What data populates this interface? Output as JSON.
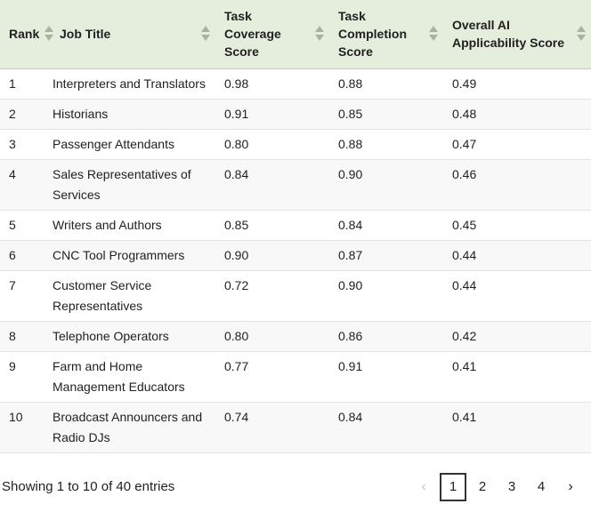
{
  "table": {
    "columns": [
      {
        "label": "Rank"
      },
      {
        "label": "Job Title"
      },
      {
        "label": "Task Coverage Score"
      },
      {
        "label": "Task Completion Score"
      },
      {
        "label": "Overall AI Applicability Score"
      }
    ],
    "rows": [
      {
        "rank": "1",
        "job_title": "Interpreters and Translators",
        "task_coverage": "0.98",
        "task_completion": "0.88",
        "overall": "0.49"
      },
      {
        "rank": "2",
        "job_title": "Historians",
        "task_coverage": "0.91",
        "task_completion": "0.85",
        "overall": "0.48"
      },
      {
        "rank": "3",
        "job_title": "Passenger Attendants",
        "task_coverage": "0.80",
        "task_completion": "0.88",
        "overall": "0.47"
      },
      {
        "rank": "4",
        "job_title": "Sales Representatives of Services",
        "task_coverage": "0.84",
        "task_completion": "0.90",
        "overall": "0.46"
      },
      {
        "rank": "5",
        "job_title": "Writers and Authors",
        "task_coverage": "0.85",
        "task_completion": "0.84",
        "overall": "0.45"
      },
      {
        "rank": "6",
        "job_title": "CNC Tool Programmers",
        "task_coverage": "0.90",
        "task_completion": "0.87",
        "overall": "0.44"
      },
      {
        "rank": "7",
        "job_title": "Customer Service Representatives",
        "task_coverage": "0.72",
        "task_completion": "0.90",
        "overall": "0.44"
      },
      {
        "rank": "8",
        "job_title": "Telephone Operators",
        "task_coverage": "0.80",
        "task_completion": "0.86",
        "overall": "0.42"
      },
      {
        "rank": "9",
        "job_title": "Farm and Home Management Educators",
        "task_coverage": "0.77",
        "task_completion": "0.91",
        "overall": "0.41"
      },
      {
        "rank": "10",
        "job_title": "Broadcast Announcers and Radio DJs",
        "task_coverage": "0.74",
        "task_completion": "0.84",
        "overall": "0.41"
      }
    ]
  },
  "footer": {
    "summary": "Showing 1 to 10 of 40 entries",
    "pagination": {
      "prev": "‹",
      "next": "›",
      "pages": [
        "1",
        "2",
        "3",
        "4"
      ],
      "current_page": "1"
    }
  },
  "colors": {
    "header_bg": "#e5eedc",
    "stripe_bg": "#f8f8f8",
    "row_border": "#e3e3e3",
    "header_border": "#c9c9c9",
    "sort_icon": "#a9b1a3",
    "current_page_border": "#333333",
    "disabled_nav": "#c9c9c9",
    "text": "#1f1f1f"
  }
}
